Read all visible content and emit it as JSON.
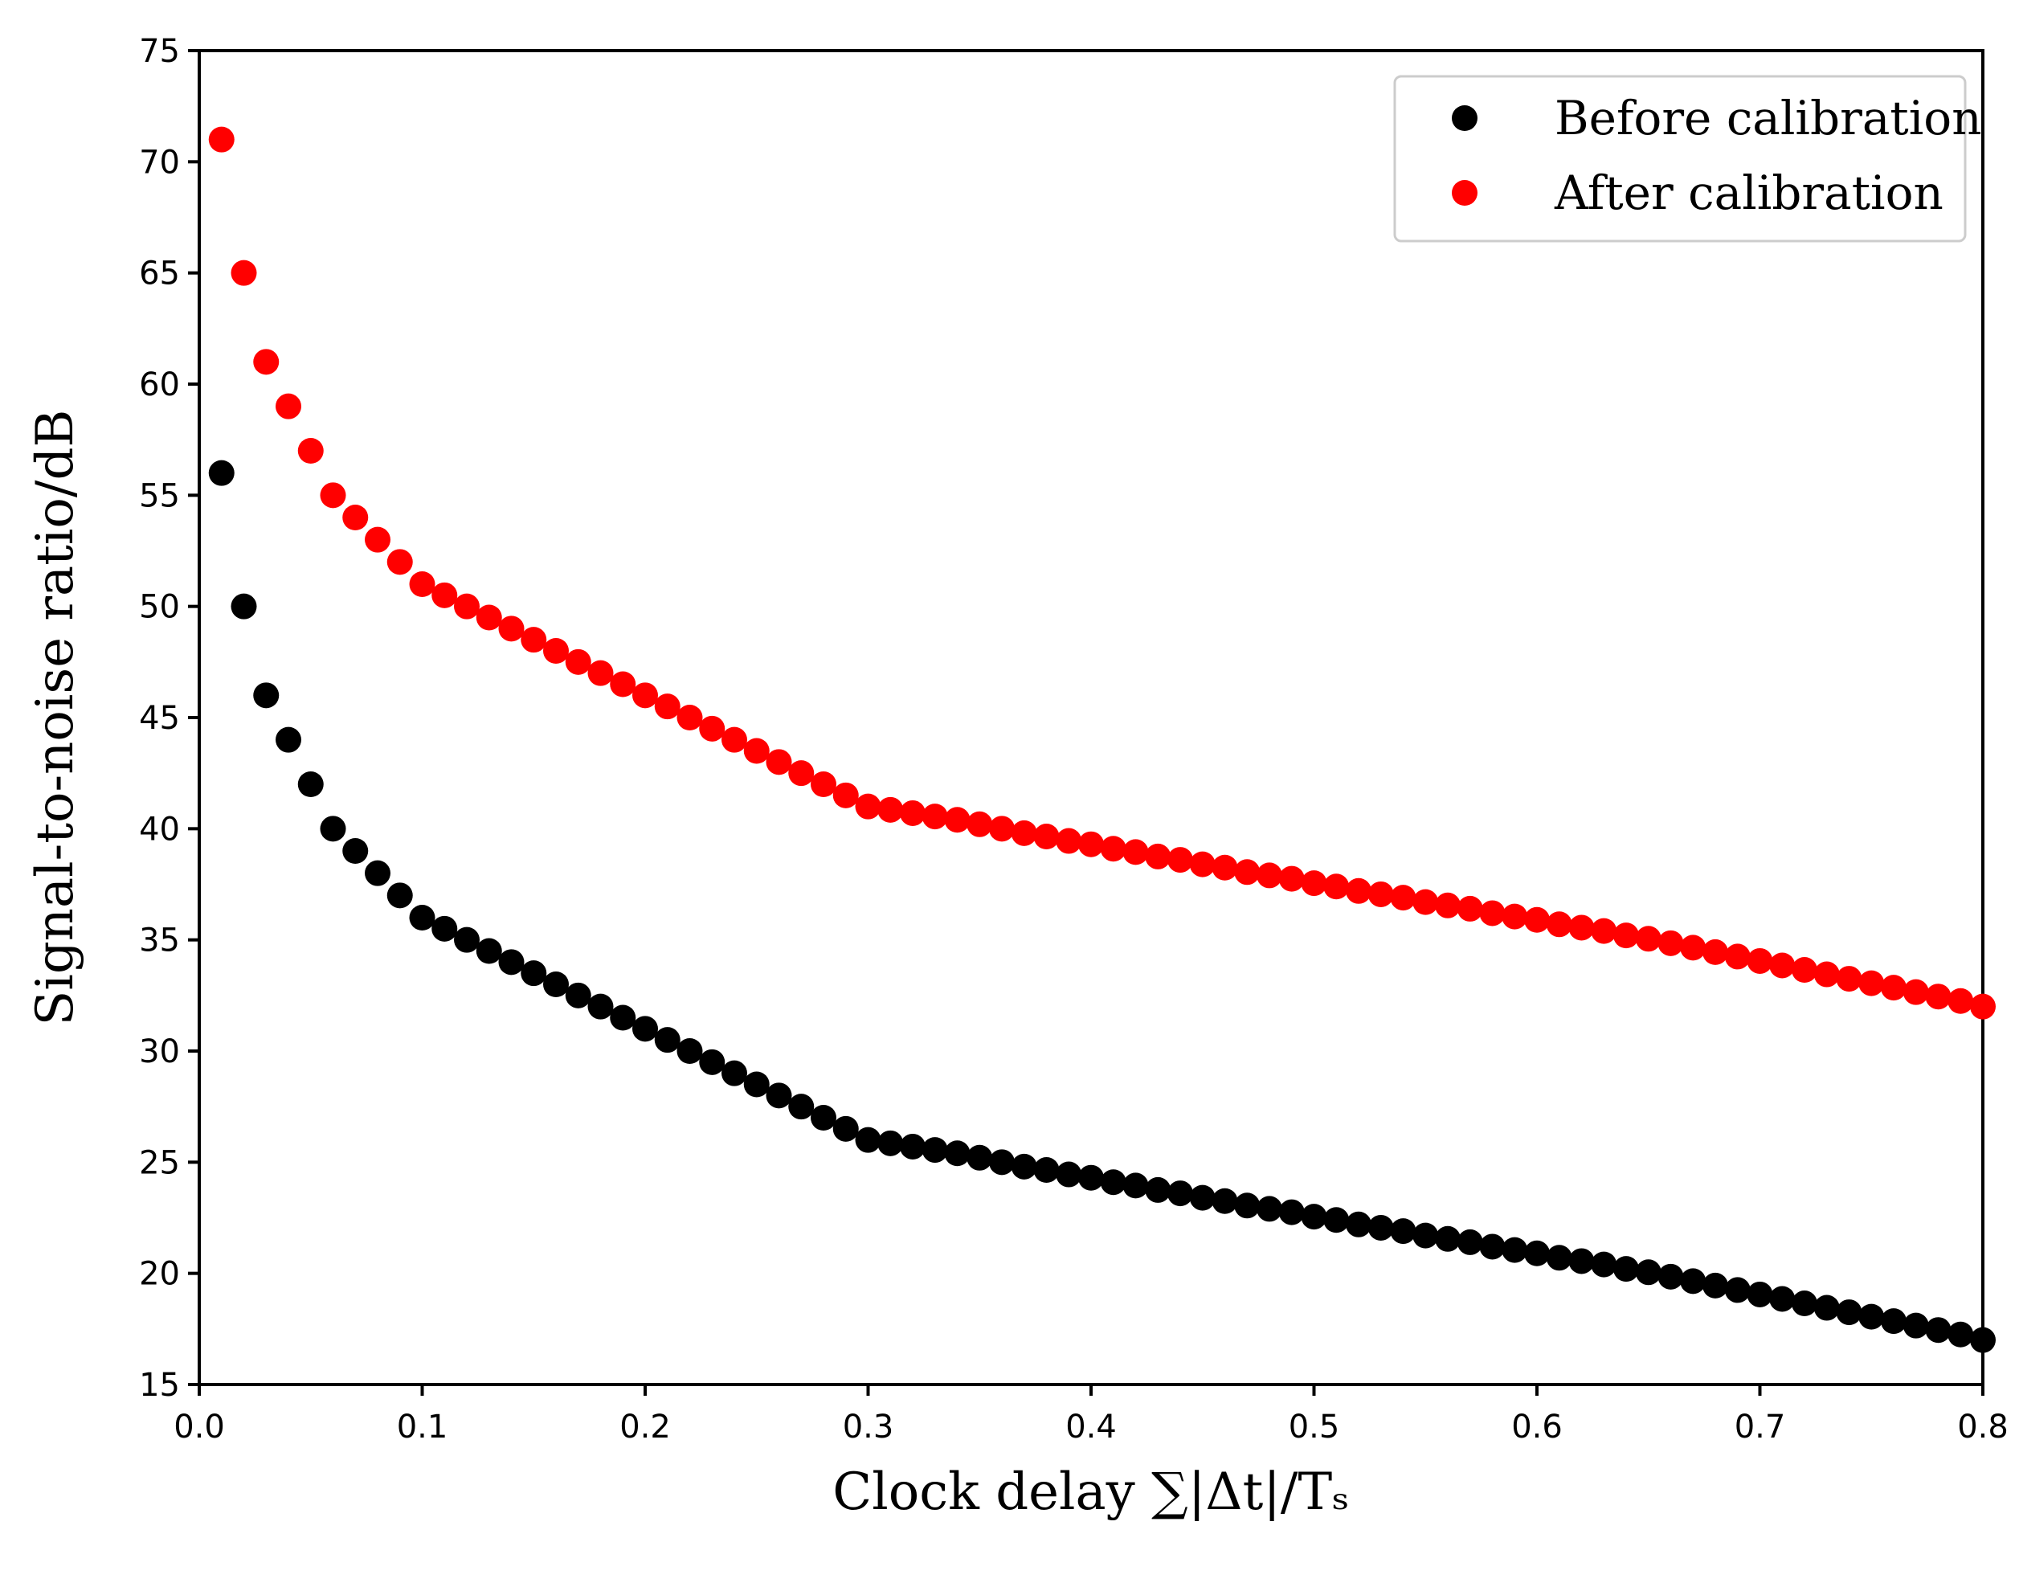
{
  "chart_data": {
    "type": "scatter",
    "xlabel": "Clock delay ∑|Δt|/Tₛ",
    "ylabel": "Signal-to-noise ratio/dB",
    "xlim": [
      0.0,
      0.8
    ],
    "ylim": [
      15,
      75
    ],
    "x_ticks": [
      "0.0",
      "0.1",
      "0.2",
      "0.3",
      "0.4",
      "0.5",
      "0.6",
      "0.7",
      "0.8"
    ],
    "y_ticks": [
      "15",
      "20",
      "25",
      "30",
      "35",
      "40",
      "45",
      "50",
      "55",
      "60",
      "65",
      "70",
      "75"
    ],
    "grid": false,
    "legend_position": "top-right",
    "x": [
      0.01,
      0.02,
      0.03,
      0.04,
      0.05,
      0.06,
      0.07,
      0.08,
      0.09,
      0.1,
      0.11,
      0.12,
      0.13,
      0.14,
      0.15,
      0.16,
      0.17,
      0.18,
      0.19,
      0.2,
      0.21,
      0.22,
      0.23,
      0.24,
      0.25,
      0.26,
      0.27,
      0.28,
      0.29,
      0.3,
      0.31,
      0.32,
      0.33,
      0.34,
      0.35,
      0.36,
      0.37,
      0.38,
      0.39,
      0.4,
      0.41,
      0.42,
      0.43,
      0.44,
      0.45,
      0.46,
      0.47,
      0.48,
      0.49,
      0.5,
      0.51,
      0.52,
      0.53,
      0.54,
      0.55,
      0.56,
      0.57,
      0.58,
      0.59,
      0.6,
      0.61,
      0.62,
      0.63,
      0.64,
      0.65,
      0.66,
      0.67,
      0.68,
      0.69,
      0.7,
      0.71,
      0.72,
      0.73,
      0.74,
      0.75,
      0.76,
      0.77,
      0.78,
      0.79,
      0.8
    ],
    "series": [
      {
        "name": "Before calibration",
        "color": "#000000",
        "values": [
          56,
          50,
          46,
          44,
          42,
          40,
          39,
          38,
          37,
          36,
          35.5,
          35,
          34.5,
          34,
          33.5,
          33,
          32.5,
          32,
          31.5,
          31,
          30.5,
          30,
          29.5,
          29,
          28.5,
          28,
          27.5,
          27,
          26.5,
          26,
          25.85,
          25.7,
          25.55,
          25.4,
          25.2,
          25.0,
          24.8,
          24.65,
          24.45,
          24.3,
          24.1,
          23.95,
          23.75,
          23.6,
          23.4,
          23.25,
          23.05,
          22.9,
          22.75,
          22.55,
          22.4,
          22.2,
          22.05,
          21.9,
          21.7,
          21.55,
          21.4,
          21.2,
          21.05,
          20.9,
          20.7,
          20.55,
          20.4,
          20.2,
          20.05,
          19.85,
          19.65,
          19.45,
          19.25,
          19.05,
          18.85,
          18.65,
          18.45,
          18.25,
          18.05,
          17.85,
          17.65,
          17.45,
          17.25,
          17.0
        ]
      },
      {
        "name": "After calibration",
        "color": "#ff0000",
        "values": [
          71,
          65,
          61,
          59,
          57,
          55,
          54,
          53,
          52,
          51,
          50.5,
          50,
          49.5,
          49,
          48.5,
          48,
          47.5,
          47,
          46.5,
          46,
          45.5,
          45,
          44.5,
          44,
          43.5,
          43,
          42.5,
          42,
          41.5,
          41,
          40.85,
          40.7,
          40.55,
          40.4,
          40.2,
          40.0,
          39.8,
          39.65,
          39.45,
          39.3,
          39.1,
          38.95,
          38.75,
          38.6,
          38.4,
          38.25,
          38.05,
          37.9,
          37.75,
          37.55,
          37.4,
          37.2,
          37.05,
          36.9,
          36.7,
          36.55,
          36.4,
          36.2,
          36.05,
          35.9,
          35.7,
          35.55,
          35.4,
          35.2,
          35.05,
          34.85,
          34.65,
          34.45,
          34.25,
          34.05,
          33.85,
          33.65,
          33.45,
          33.25,
          33.05,
          32.85,
          32.65,
          32.45,
          32.25,
          32.0
        ]
      }
    ]
  }
}
